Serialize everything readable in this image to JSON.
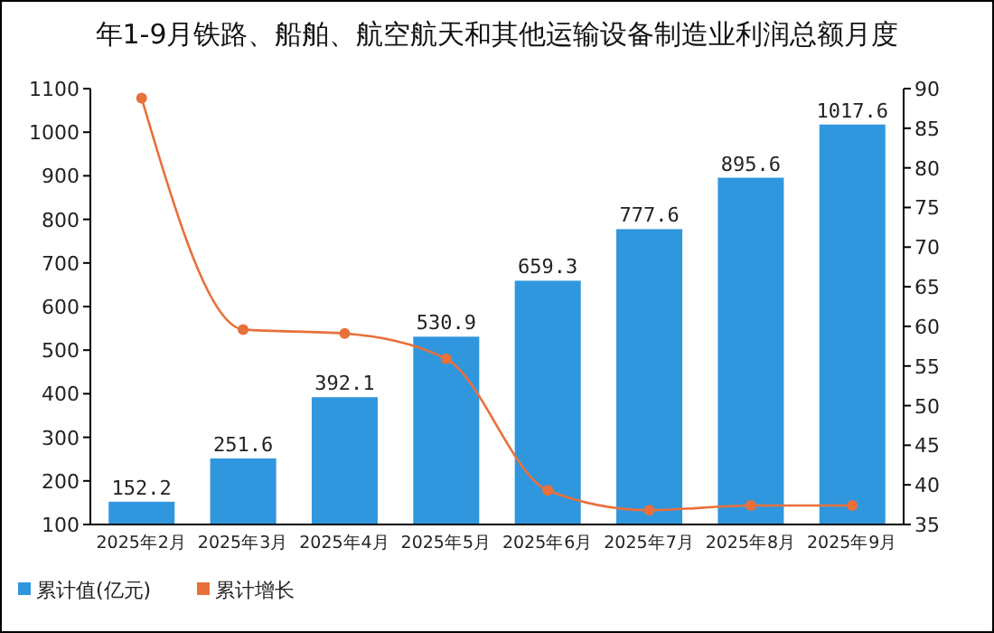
{
  "chart_data": {
    "type": "bar",
    "title": "年1-9月铁路、船舶、航空航天和其他运输设备制造业利润总额月度",
    "categories": [
      "2025年2月",
      "2025年3月",
      "2025年4月",
      "2025年5月",
      "2025年6月",
      "2025年7月",
      "2025年8月",
      "2025年9月"
    ],
    "series": [
      {
        "name": "累计值(亿元)",
        "color": "#3097de",
        "values": [
          152.2,
          251.6,
          392.1,
          530.9,
          659.3,
          777.6,
          895.6,
          1017.6
        ],
        "value_labels": [
          "152.2",
          "251.6",
          "392.1",
          "530.9",
          "659.3",
          "777.6",
          "895.6",
          "1017.6"
        ]
      },
      {
        "name": "累计增长",
        "type": "line",
        "axis": "y2",
        "color": "#e8703a",
        "values": [
          88.8,
          59.6,
          59.1,
          55.9,
          39.3,
          36.8,
          37.4,
          37.4
        ]
      }
    ],
    "ylim": [
      100,
      1100
    ],
    "yticks": [
      100,
      200,
      300,
      400,
      500,
      600,
      700,
      800,
      900,
      1000,
      1100
    ],
    "y2lim": [
      35,
      90
    ],
    "y2ticks": [
      35,
      40,
      45,
      50,
      55,
      60,
      65,
      70,
      75,
      80,
      85,
      90
    ],
    "marker": "circle",
    "legend": "bottom left",
    "grid": false
  }
}
